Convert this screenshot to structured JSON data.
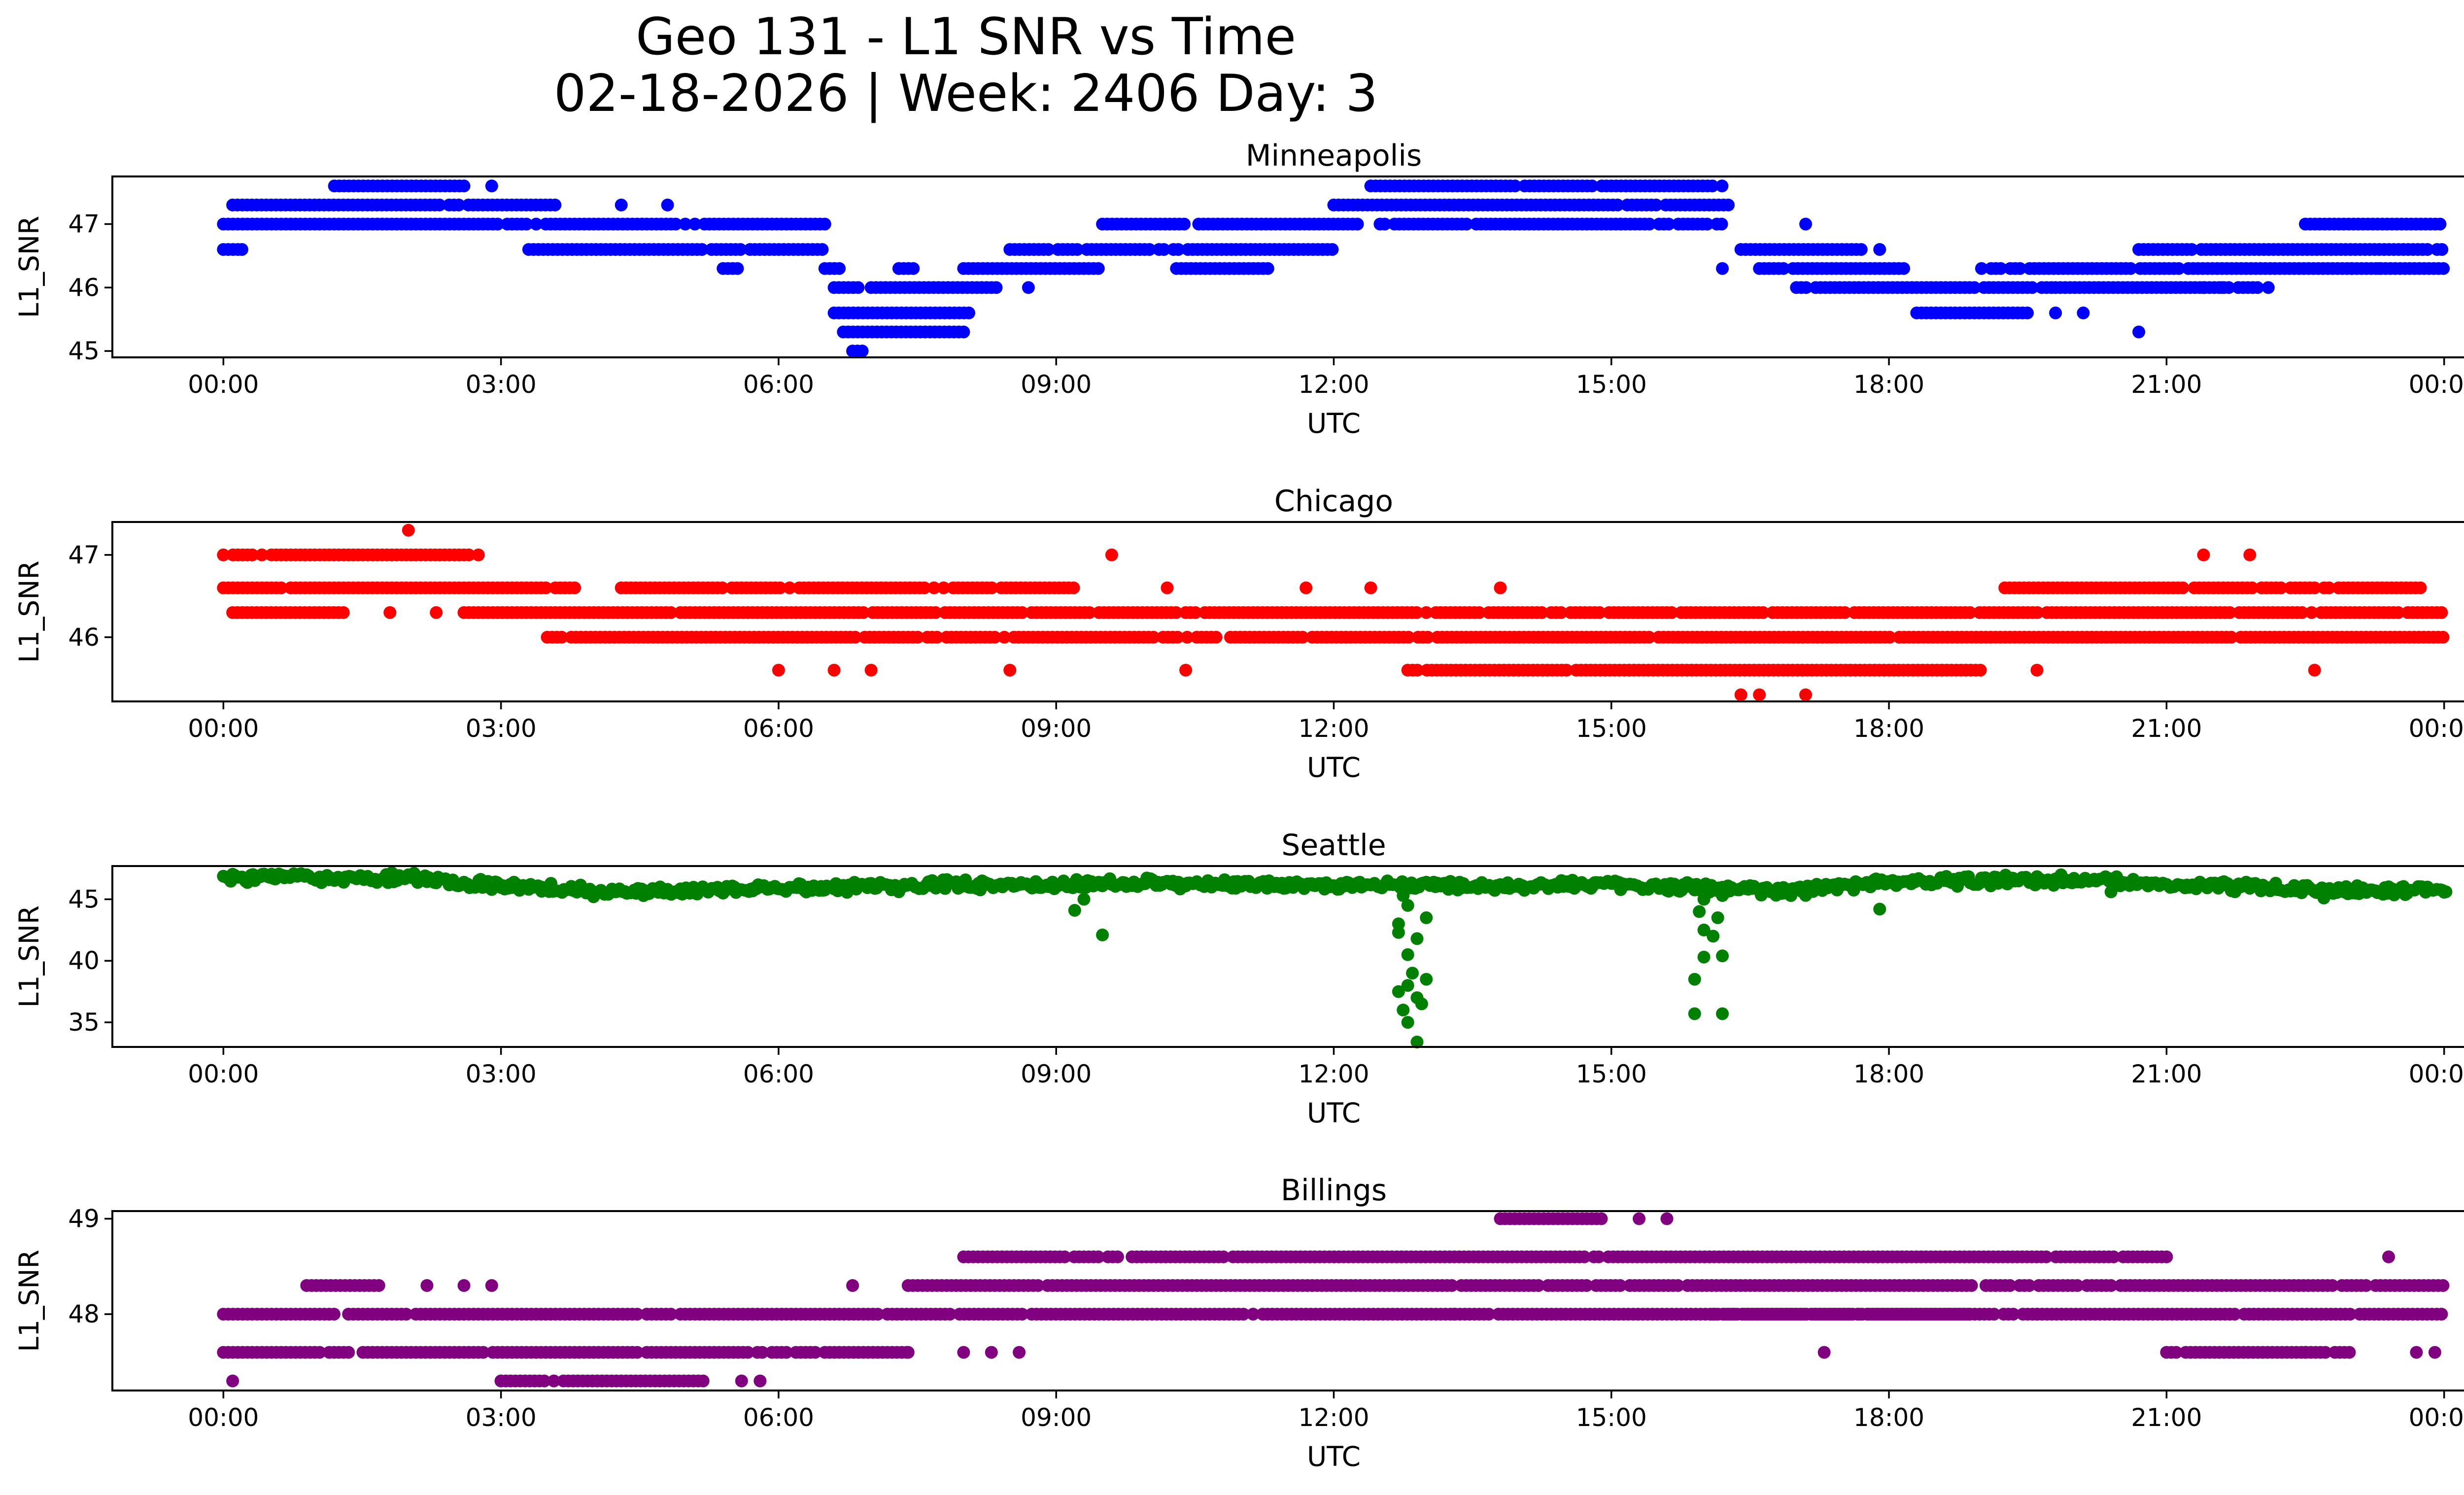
{
  "title_line1": "Geo 131 - L1 SNR vs Time",
  "title_line2": "02-18-2026 | Week: 2406 Day: 3",
  "chart_data": [
    {
      "type": "scatter",
      "title": "Minneapolis",
      "color": "#0000ff",
      "xlabel": "UTC",
      "ylabel": "L1_SNR",
      "xlim": [
        -1.2,
        25.2
      ],
      "ylim": [
        44.9,
        47.75
      ],
      "yticks": [
        45,
        46,
        47
      ],
      "xticks": [
        0,
        3,
        6,
        9,
        12,
        15,
        18,
        21,
        24
      ],
      "xtick_labels": [
        "00:00",
        "03:00",
        "06:00",
        "09:00",
        "12:00",
        "15:00",
        "18:00",
        "21:00",
        "00:00"
      ],
      "series": [
        {
          "name": "bands",
          "points_desc": "bands of [x_start, x_end, y]",
          "bands": [
            [
              0.0,
              6.5,
              47.0
            ],
            [
              0.0,
              0.2,
              46.6
            ],
            [
              0.1,
              3.6,
              47.3
            ],
            [
              1.2,
              2.6,
              47.6
            ],
            [
              3.3,
              6.5,
              46.6
            ],
            [
              5.4,
              5.6,
              46.3
            ],
            [
              6.5,
              6.7,
              46.3
            ],
            [
              6.6,
              6.9,
              46.0
            ],
            [
              6.6,
              8.1,
              45.6
            ],
            [
              6.7,
              8.0,
              45.3
            ],
            [
              6.8,
              6.95,
              45.0
            ],
            [
              7.0,
              8.4,
              46.0
            ],
            [
              7.3,
              7.5,
              46.3
            ],
            [
              8.0,
              9.5,
              46.3
            ],
            [
              8.5,
              12.1,
              46.6
            ],
            [
              9.5,
              12.3,
              47.0
            ],
            [
              10.3,
              11.3,
              46.3
            ],
            [
              12.0,
              16.3,
              47.3
            ],
            [
              12.4,
              16.2,
              47.6
            ],
            [
              12.5,
              16.2,
              47.0
            ],
            [
              16.4,
              17.7,
              46.6
            ],
            [
              16.6,
              18.2,
              46.3
            ],
            [
              17.0,
              19.8,
              46.0
            ],
            [
              18.3,
              19.5,
              45.6
            ],
            [
              19.0,
              24.0,
              46.3
            ],
            [
              19.8,
              22.0,
              46.0
            ],
            [
              20.7,
              24.0,
              46.6
            ],
            [
              22.5,
              24.0,
              47.0
            ]
          ],
          "singles": [
            [
              0.2,
              46.6
            ],
            [
              2.6,
              47.6
            ],
            [
              2.9,
              47.6
            ],
            [
              4.3,
              47.3
            ],
            [
              4.8,
              47.3
            ],
            [
              7.3,
              46.3
            ],
            [
              8.7,
              46.0
            ],
            [
              17.1,
              47.0
            ],
            [
              17.9,
              46.6
            ],
            [
              16.2,
              46.3
            ],
            [
              15.1,
              47.0
            ],
            [
              19.8,
              45.6
            ],
            [
              20.1,
              45.6
            ],
            [
              20.7,
              45.3
            ],
            [
              22.1,
              46.0
            ],
            [
              21.4,
              46.0
            ],
            [
              21.6,
              46.0
            ],
            [
              23.0,
              46.3
            ],
            [
              23.3,
              46.3
            ]
          ]
        }
      ]
    },
    {
      "type": "scatter",
      "title": "Chicago",
      "color": "#ff0000",
      "xlabel": "UTC",
      "ylabel": "L1_SNR",
      "xlim": [
        -1.2,
        25.2
      ],
      "ylim": [
        45.22,
        47.4
      ],
      "yticks": [
        46,
        47
      ],
      "xticks": [
        0,
        3,
        6,
        9,
        12,
        15,
        18,
        21,
        24
      ],
      "xtick_labels": [
        "00:00",
        "03:00",
        "06:00",
        "09:00",
        "12:00",
        "15:00",
        "18:00",
        "21:00",
        "00:00"
      ],
      "series": [
        {
          "name": "bands",
          "bands": [
            [
              0.0,
              2.8,
              47.0
            ],
            [
              0.0,
              3.8,
              46.6
            ],
            [
              0.1,
              1.3,
              46.3
            ],
            [
              2.6,
              24.0,
              46.3
            ],
            [
              3.5,
              24.0,
              46.0
            ],
            [
              4.3,
              9.2,
              46.6
            ],
            [
              12.8,
              19.0,
              45.6
            ],
            [
              19.2,
              21.2,
              46.6
            ],
            [
              21.3,
              23.8,
              46.6
            ]
          ],
          "singles": [
            [
              2.0,
              47.3
            ],
            [
              9.6,
              47.0
            ],
            [
              21.4,
              47.0
            ],
            [
              21.9,
              47.0
            ],
            [
              1.8,
              46.3
            ],
            [
              2.3,
              46.3
            ],
            [
              6.0,
              45.6
            ],
            [
              6.6,
              45.6
            ],
            [
              7.0,
              45.6
            ],
            [
              8.5,
              45.6
            ],
            [
              10.4,
              45.6
            ],
            [
              13.8,
              46.6
            ],
            [
              16.4,
              45.3
            ],
            [
              16.6,
              45.3
            ],
            [
              17.1,
              45.3
            ],
            [
              19.6,
              45.6
            ],
            [
              22.6,
              45.6
            ],
            [
              10.2,
              46.6
            ],
            [
              11.7,
              46.6
            ],
            [
              12.4,
              46.6
            ]
          ]
        }
      ]
    },
    {
      "type": "scatter",
      "title": "Seattle",
      "color": "#008000",
      "xlabel": "UTC",
      "ylabel": "L1_SNR",
      "xlim": [
        -1.2,
        25.2
      ],
      "ylim": [
        33.0,
        47.7
      ],
      "yticks": [
        35,
        40,
        45
      ],
      "xticks": [
        0,
        3,
        6,
        9,
        12,
        15,
        18,
        21,
        24
      ],
      "xtick_labels": [
        "00:00",
        "03:00",
        "06:00",
        "09:00",
        "12:00",
        "15:00",
        "18:00",
        "21:00",
        "00:00"
      ],
      "series": [
        {
          "name": "baseline",
          "curve": [
            [
              0.0,
              46.7
            ],
            [
              1.0,
              46.8
            ],
            [
              2.0,
              46.7
            ],
            [
              3.0,
              46.1
            ],
            [
              4.0,
              45.7
            ],
            [
              5.0,
              45.7
            ],
            [
              6.0,
              45.9
            ],
            [
              7.0,
              46.0
            ],
            [
              8.0,
              46.2
            ],
            [
              9.0,
              46.2
            ],
            [
              10.0,
              46.3
            ],
            [
              11.0,
              46.2
            ],
            [
              12.0,
              46.1
            ],
            [
              13.0,
              46.1
            ],
            [
              14.0,
              46.1
            ],
            [
              15.0,
              46.2
            ],
            [
              16.0,
              45.9
            ],
            [
              17.0,
              45.7
            ],
            [
              18.0,
              46.4
            ],
            [
              19.0,
              46.5
            ],
            [
              20.0,
              46.6
            ],
            [
              21.0,
              46.2
            ],
            [
              22.0,
              46.0
            ],
            [
              23.0,
              45.7
            ],
            [
              24.0,
              45.8
            ]
          ],
          "singles": [
            [
              9.5,
              42.1
            ],
            [
              9.2,
              44.1
            ],
            [
              9.3,
              45.0
            ],
            [
              17.9,
              44.2
            ],
            [
              12.9,
              33.4
            ],
            [
              12.8,
              35.0
            ],
            [
              12.75,
              36.0
            ],
            [
              12.9,
              37.0
            ],
            [
              12.8,
              38.0
            ],
            [
              12.85,
              39.0
            ],
            [
              12.8,
              40.5
            ],
            [
              12.9,
              41.8
            ],
            [
              12.7,
              43.0
            ],
            [
              12.8,
              44.5
            ],
            [
              12.75,
              45.3
            ],
            [
              12.95,
              36.5
            ],
            [
              12.7,
              37.5
            ],
            [
              13.0,
              38.5
            ],
            [
              12.7,
              42.3
            ],
            [
              13.0,
              43.5
            ],
            [
              15.9,
              35.7
            ],
            [
              16.2,
              35.7
            ],
            [
              15.9,
              38.5
            ],
            [
              16.0,
              40.3
            ],
            [
              16.2,
              40.4
            ],
            [
              16.0,
              42.5
            ],
            [
              16.1,
              42.0
            ],
            [
              15.95,
              44.0
            ],
            [
              16.15,
              43.5
            ],
            [
              16.0,
              45.0
            ],
            [
              16.2,
              45.3
            ],
            [
              4.0,
              45.2
            ],
            [
              22.7,
              45.1
            ],
            [
              20.4,
              45.6
            ]
          ]
        }
      ]
    },
    {
      "type": "scatter",
      "title": "Billings",
      "color": "#800080",
      "xlabel": "UTC",
      "ylabel": "L1_SNR",
      "xlim": [
        -1.2,
        25.2
      ],
      "ylim": [
        47.2,
        49.08
      ],
      "yticks": [
        48,
        49
      ],
      "xticks": [
        0,
        3,
        6,
        9,
        12,
        15,
        18,
        21,
        24
      ],
      "xtick_labels": [
        "00:00",
        "03:00",
        "06:00",
        "09:00",
        "12:00",
        "15:00",
        "18:00",
        "21:00",
        "00:00"
      ],
      "series": [
        {
          "name": "bands",
          "bands": [
            [
              0.0,
              24.0,
              48.0
            ],
            [
              0.0,
              7.4,
              47.6
            ],
            [
              3.0,
              5.2,
              47.3
            ],
            [
              0.9,
              1.7,
              48.3
            ],
            [
              7.4,
              24.0,
              48.3
            ],
            [
              8.0,
              21.0,
              48.6
            ],
            [
              13.8,
              14.9,
              49.0
            ],
            [
              16.1,
              18.9,
              48.0
            ],
            [
              21.0,
              23.0,
              47.6
            ]
          ],
          "singles": [
            [
              0.1,
              47.3
            ],
            [
              2.2,
              48.3
            ],
            [
              2.6,
              48.3
            ],
            [
              2.9,
              48.3
            ],
            [
              3.0,
              47.3
            ],
            [
              5.6,
              47.3
            ],
            [
              5.8,
              47.3
            ],
            [
              6.8,
              48.3
            ],
            [
              7.4,
              47.6
            ],
            [
              8.0,
              47.6
            ],
            [
              8.3,
              47.6
            ],
            [
              8.6,
              47.6
            ],
            [
              13.3,
              48.0
            ],
            [
              15.3,
              49.0
            ],
            [
              15.6,
              49.0
            ],
            [
              17.3,
              47.6
            ],
            [
              19.6,
              48.0
            ],
            [
              22.5,
              47.6
            ],
            [
              23.4,
              48.6
            ],
            [
              23.7,
              47.6
            ],
            [
              23.9,
              47.6
            ]
          ]
        }
      ]
    }
  ]
}
